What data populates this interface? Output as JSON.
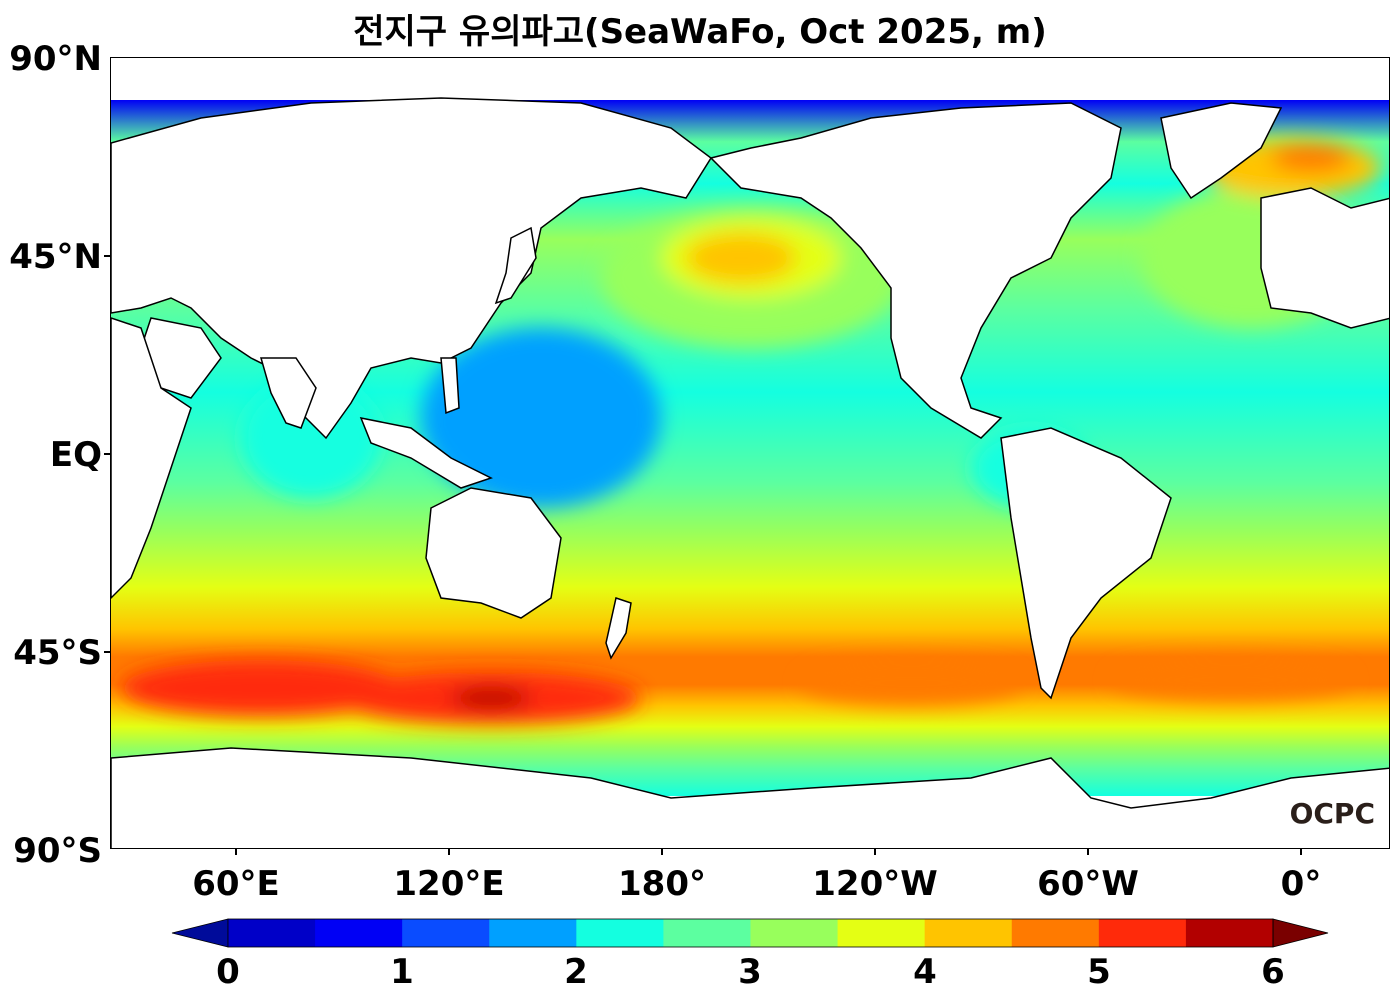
{
  "title": "전지구 유의파고(SeaWaFo, Oct 2025, m)",
  "logo_text": "OCPC",
  "y_ticks": [
    "90°N",
    "45°N",
    "EQ",
    "45°S",
    "90°S"
  ],
  "x_ticks": [
    "60°E",
    "120°E",
    "180°",
    "120°W",
    "60°W",
    "0°"
  ],
  "colorbar": {
    "labels": [
      "0",
      "1",
      "2",
      "3",
      "4",
      "5",
      "6"
    ],
    "colors": [
      "#000b9a",
      "#0000c8",
      "#0000f5",
      "#0a4cff",
      "#00a0ff",
      "#14ffe0",
      "#5cffa0",
      "#98ff5c",
      "#e4ff14",
      "#ffc400",
      "#ff7a00",
      "#ff2a0a",
      "#b20000",
      "#7a0000"
    ]
  },
  "chart_data": {
    "type": "heatmap",
    "title": "전지구 유의파고(SeaWaFo, Oct 2025, m)",
    "variable": "significant wave height",
    "unit": "m",
    "x_range": [
      "25°E",
      "380°E (20°E)"
    ],
    "y_range": [
      -90,
      90
    ],
    "color_levels": [
      0,
      0.5,
      1,
      1.5,
      2,
      2.5,
      3,
      3.5,
      4,
      4.5,
      5,
      5.5,
      6
    ],
    "extend": "both",
    "features": [
      {
        "region": "Southern Ocean storm belt",
        "value_range": [
          4.5,
          5.5
        ]
      },
      {
        "region": "North Pacific",
        "value_range": [
          4,
          4.5
        ]
      },
      {
        "region": "North Atlantic",
        "value_range": [
          4,
          4.5
        ]
      },
      {
        "region": "Tropical oceans",
        "value_range": [
          2,
          3
        ]
      }
    ]
  }
}
